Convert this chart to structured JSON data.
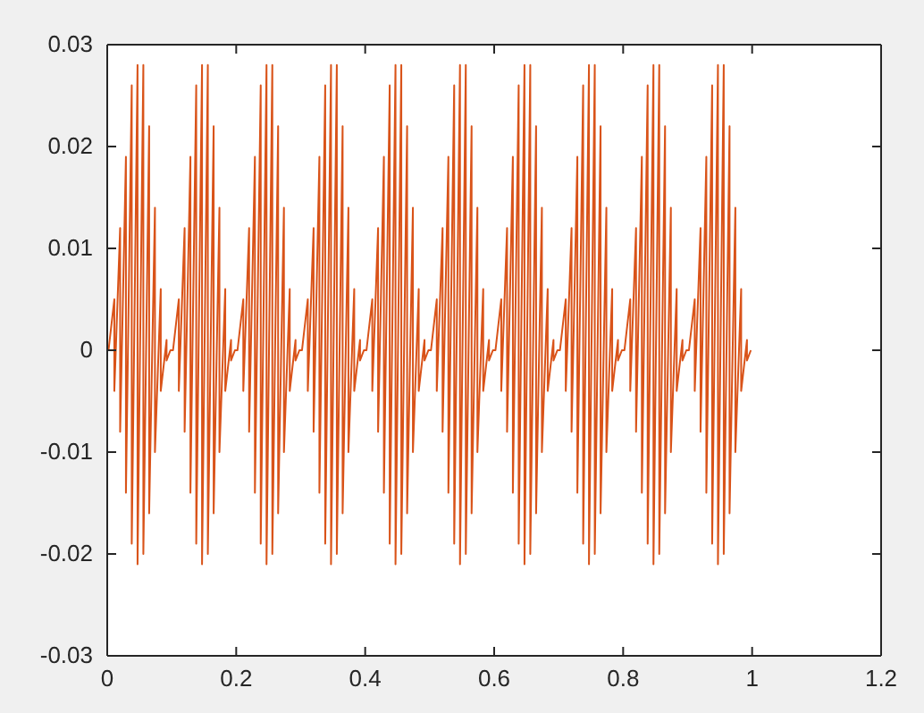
{
  "chart_data": {
    "type": "line",
    "xlim": [
      0,
      1.2
    ],
    "xticks": [
      0,
      0.2,
      0.4,
      0.6,
      0.8,
      1,
      1.2
    ],
    "ylim": [
      -0.03,
      0.03
    ],
    "yticks": [
      -0.03,
      -0.02,
      -0.01,
      0,
      0.01,
      0.02,
      0.03
    ],
    "grid": false,
    "series": [
      {
        "color": "#d95319",
        "x": [
          0.002,
          0.011,
          0.011,
          0.02,
          0.02,
          0.029,
          0.029,
          0.038,
          0.038,
          0.047,
          0.047,
          0.056,
          0.056,
          0.065,
          0.065,
          0.074,
          0.074,
          0.083,
          0.083,
          0.092,
          0.092,
          0.098,
          0.102,
          0.111,
          0.111,
          0.12,
          0.12,
          0.129,
          0.129,
          0.138,
          0.138,
          0.147,
          0.147,
          0.156,
          0.156,
          0.165,
          0.165,
          0.174,
          0.174,
          0.183,
          0.183,
          0.192,
          0.192,
          0.198,
          0.202,
          0.211,
          0.211,
          0.22,
          0.22,
          0.229,
          0.229,
          0.238,
          0.238,
          0.247,
          0.247,
          0.256,
          0.256,
          0.265,
          0.265,
          0.274,
          0.274,
          0.283,
          0.283,
          0.292,
          0.292,
          0.298,
          0.302,
          0.311,
          0.311,
          0.32,
          0.32,
          0.329,
          0.329,
          0.338,
          0.338,
          0.347,
          0.347,
          0.356,
          0.356,
          0.365,
          0.365,
          0.374,
          0.374,
          0.383,
          0.383,
          0.392,
          0.392,
          0.398,
          0.402,
          0.411,
          0.411,
          0.42,
          0.42,
          0.429,
          0.429,
          0.438,
          0.438,
          0.447,
          0.447,
          0.456,
          0.456,
          0.465,
          0.465,
          0.474,
          0.474,
          0.483,
          0.483,
          0.492,
          0.492,
          0.498,
          0.502,
          0.511,
          0.511,
          0.52,
          0.52,
          0.529,
          0.529,
          0.538,
          0.538,
          0.547,
          0.547,
          0.556,
          0.556,
          0.565,
          0.565,
          0.574,
          0.574,
          0.583,
          0.583,
          0.592,
          0.592,
          0.598,
          0.602,
          0.611,
          0.611,
          0.62,
          0.62,
          0.629,
          0.629,
          0.638,
          0.638,
          0.647,
          0.647,
          0.656,
          0.656,
          0.665,
          0.665,
          0.674,
          0.674,
          0.683,
          0.683,
          0.692,
          0.692,
          0.698,
          0.702,
          0.711,
          0.711,
          0.72,
          0.72,
          0.729,
          0.729,
          0.738,
          0.738,
          0.747,
          0.747,
          0.756,
          0.756,
          0.765,
          0.765,
          0.774,
          0.774,
          0.783,
          0.783,
          0.792,
          0.792,
          0.798,
          0.802,
          0.811,
          0.811,
          0.82,
          0.82,
          0.829,
          0.829,
          0.838,
          0.838,
          0.847,
          0.847,
          0.856,
          0.856,
          0.865,
          0.865,
          0.874,
          0.874,
          0.883,
          0.883,
          0.892,
          0.892,
          0.898,
          0.902,
          0.911,
          0.911,
          0.92,
          0.92,
          0.929,
          0.929,
          0.938,
          0.938,
          0.947,
          0.947,
          0.956,
          0.956,
          0.965,
          0.965,
          0.974,
          0.974,
          0.983,
          0.983,
          0.992,
          0.992,
          0.998
        ],
        "values": [
          0,
          0.005,
          -0.004,
          0.012,
          -0.008,
          0.019,
          -0.014,
          0.026,
          -0.019,
          0.028,
          -0.021,
          0.028,
          -0.02,
          0.022,
          -0.016,
          0.014,
          -0.01,
          0.006,
          -0.004,
          0.001,
          -0.001,
          0,
          0,
          0.005,
          -0.004,
          0.012,
          -0.008,
          0.019,
          -0.014,
          0.026,
          -0.019,
          0.028,
          -0.021,
          0.028,
          -0.02,
          0.022,
          -0.016,
          0.014,
          -0.01,
          0.006,
          -0.004,
          0.001,
          -0.001,
          0,
          0,
          0.005,
          -0.004,
          0.012,
          -0.008,
          0.019,
          -0.014,
          0.026,
          -0.019,
          0.028,
          -0.021,
          0.028,
          -0.02,
          0.022,
          -0.016,
          0.014,
          -0.01,
          0.006,
          -0.004,
          0.001,
          -0.001,
          0,
          0,
          0.005,
          -0.004,
          0.012,
          -0.008,
          0.019,
          -0.014,
          0.026,
          -0.019,
          0.028,
          -0.021,
          0.028,
          -0.02,
          0.022,
          -0.016,
          0.014,
          -0.01,
          0.006,
          -0.004,
          0.001,
          -0.001,
          0,
          0,
          0.005,
          -0.004,
          0.012,
          -0.008,
          0.019,
          -0.014,
          0.026,
          -0.019,
          0.028,
          -0.021,
          0.028,
          -0.02,
          0.022,
          -0.016,
          0.014,
          -0.01,
          0.006,
          -0.004,
          0.001,
          -0.001,
          0,
          0,
          0.005,
          -0.004,
          0.012,
          -0.008,
          0.019,
          -0.014,
          0.026,
          -0.019,
          0.028,
          -0.021,
          0.028,
          -0.02,
          0.022,
          -0.016,
          0.014,
          -0.01,
          0.006,
          -0.004,
          0.001,
          -0.001,
          0,
          0,
          0.005,
          -0.004,
          0.012,
          -0.008,
          0.019,
          -0.014,
          0.026,
          -0.019,
          0.028,
          -0.021,
          0.028,
          -0.02,
          0.022,
          -0.016,
          0.014,
          -0.01,
          0.006,
          -0.004,
          0.001,
          -0.001,
          0,
          0,
          0.005,
          -0.004,
          0.012,
          -0.008,
          0.019,
          -0.014,
          0.026,
          -0.019,
          0.028,
          -0.021,
          0.028,
          -0.02,
          0.022,
          -0.016,
          0.014,
          -0.01,
          0.006,
          -0.004,
          0.001,
          -0.001,
          0,
          0,
          0.005,
          -0.004,
          0.012,
          -0.008,
          0.019,
          -0.014,
          0.026,
          -0.019,
          0.028,
          -0.021,
          0.028,
          -0.02,
          0.022,
          -0.016,
          0.014,
          -0.01,
          0.006,
          -0.004,
          0.001,
          -0.001,
          0,
          0,
          0.005,
          -0.004,
          0.012,
          -0.008,
          0.019,
          -0.014,
          0.026,
          -0.019,
          0.028,
          -0.021,
          0.028,
          -0.02,
          0.022,
          -0.016,
          0.014,
          -0.01,
          0.006,
          -0.004,
          0.001,
          -0.001,
          0
        ]
      }
    ]
  }
}
